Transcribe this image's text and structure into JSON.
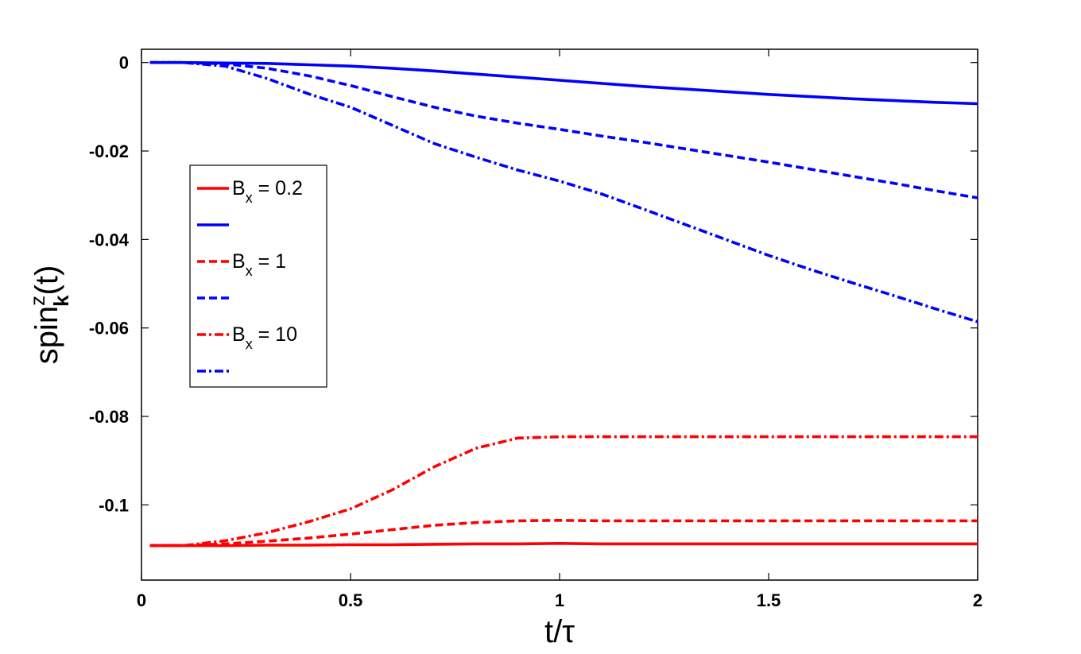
{
  "chart_data": {
    "type": "line",
    "xlabel": "t/τ",
    "ylabel": {
      "base": "spin",
      "sup": "z",
      "sub": "k",
      "tail": "(t)"
    },
    "xlim": [
      0,
      2
    ],
    "ylim": [
      -0.117,
      0.003
    ],
    "xticks": [
      0,
      0.5,
      1,
      1.5,
      2
    ],
    "xtick_labels": [
      "0",
      "0.5",
      "1",
      "1.5",
      "2"
    ],
    "yticks": [
      0,
      -0.02,
      -0.04,
      -0.06,
      -0.08,
      -0.1
    ],
    "ytick_labels": [
      "0",
      "-0.02",
      "-0.04",
      "-0.06",
      "-0.08",
      "-0.1"
    ],
    "grid": false,
    "legend_position": "left",
    "x": [
      0.02,
      0.1,
      0.2,
      0.3,
      0.4,
      0.5,
      0.6,
      0.7,
      0.8,
      0.9,
      1.0,
      1.1,
      1.2,
      1.3,
      1.4,
      1.5,
      1.6,
      1.7,
      1.8,
      1.9,
      2.0
    ],
    "series": [
      {
        "legend": "B",
        "legend_sub": "x",
        "legend_rest": " = 0.2",
        "color": "#ff0000",
        "dash": "solid",
        "values": [
          -0.1092,
          -0.1092,
          -0.1092,
          -0.1091,
          -0.1091,
          -0.109,
          -0.109,
          -0.1089,
          -0.1088,
          -0.1088,
          -0.1087,
          -0.1088,
          -0.1088,
          -0.1088,
          -0.1088,
          -0.1088,
          -0.1088,
          -0.1088,
          -0.1088,
          -0.1088,
          -0.1088
        ]
      },
      {
        "legend": "",
        "color": "#0000ff",
        "dash": "solid",
        "values": [
          0,
          0,
          -0.0001,
          -0.0002,
          -0.0005,
          -0.0008,
          -0.0013,
          -0.0019,
          -0.0026,
          -0.0033,
          -0.004,
          -0.0047,
          -0.0054,
          -0.006,
          -0.0066,
          -0.0072,
          -0.0077,
          -0.0082,
          -0.0086,
          -0.009,
          -0.0093
        ]
      },
      {
        "legend": "B",
        "legend_sub": "x",
        "legend_rest": " = 1",
        "color": "#ff0000",
        "dash": "dashed",
        "values": [
          -0.1092,
          -0.1092,
          -0.1088,
          -0.1082,
          -0.1075,
          -0.1066,
          -0.1056,
          -0.1046,
          -0.104,
          -0.1036,
          -0.1035,
          -0.1036,
          -0.1036,
          -0.1036,
          -0.1036,
          -0.1036,
          -0.1036,
          -0.1036,
          -0.1036,
          -0.1036,
          -0.1036
        ]
      },
      {
        "legend": "",
        "color": "#0000ff",
        "dash": "dashed",
        "values": [
          0,
          0,
          -0.0003,
          -0.0013,
          -0.003,
          -0.0052,
          -0.0077,
          -0.0101,
          -0.0121,
          -0.0137,
          -0.0151,
          -0.0166,
          -0.018,
          -0.0195,
          -0.021,
          -0.0225,
          -0.0241,
          -0.0257,
          -0.0273,
          -0.029,
          -0.0306
        ]
      },
      {
        "legend": "B",
        "legend_sub": "x",
        "legend_rest": " = 10",
        "color": "#ff0000",
        "dash": "dashdot",
        "values": [
          -0.1092,
          -0.1092,
          -0.1081,
          -0.1063,
          -0.1038,
          -0.1009,
          -0.0966,
          -0.0914,
          -0.0872,
          -0.0849,
          -0.0846,
          -0.0846,
          -0.0846,
          -0.0846,
          -0.0846,
          -0.0846,
          -0.0846,
          -0.0846,
          -0.0846,
          -0.0846,
          -0.0846
        ]
      },
      {
        "legend": "",
        "color": "#0000ff",
        "dash": "dashdot",
        "values": [
          0,
          0,
          -0.0008,
          -0.0036,
          -0.0071,
          -0.0101,
          -0.0142,
          -0.0183,
          -0.0214,
          -0.0243,
          -0.0268,
          -0.0297,
          -0.0331,
          -0.0366,
          -0.0401,
          -0.0436,
          -0.0468,
          -0.0498,
          -0.0527,
          -0.0557,
          -0.0586
        ]
      }
    ]
  }
}
